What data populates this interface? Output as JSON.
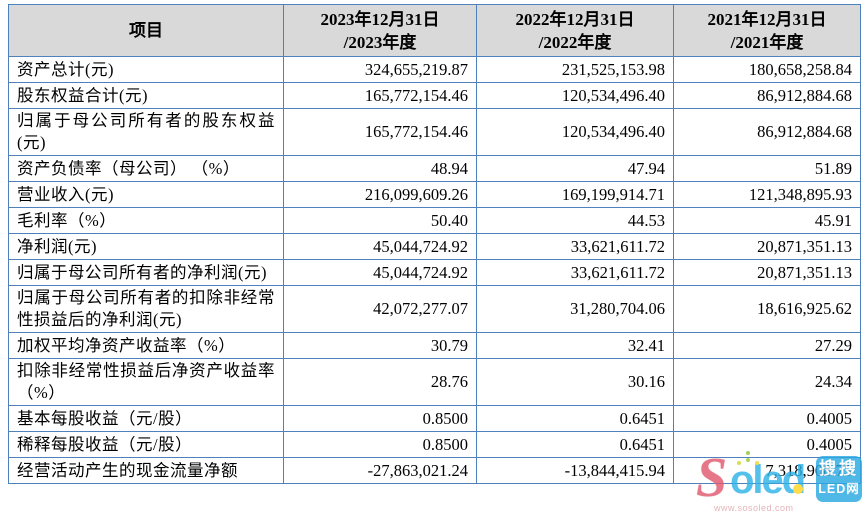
{
  "colors": {
    "table_border": "#4f81bd",
    "header_bg": "#d9d9d9",
    "text": "#000000",
    "watermark_red": "#e05a70",
    "watermark_blue": "#2fb3e8",
    "watermark_badge_bg": "#2aa9e1",
    "watermark_yellow": "#ffd520"
  },
  "table": {
    "columns": [
      {
        "label": "项目"
      },
      {
        "line1": "2023年12月31日",
        "line2": "/2023年度"
      },
      {
        "line1": "2022年12月31日",
        "line2": "/2022年度"
      },
      {
        "line1": "2021年12月31日",
        "line2": "/2021年度"
      }
    ],
    "rows": [
      {
        "label": "资产总计(元)",
        "values": [
          "324,655,219.87",
          "231,525,153.98",
          "180,658,258.84"
        ]
      },
      {
        "label": "股东权益合计(元)",
        "values": [
          "165,772,154.46",
          "120,534,496.40",
          "86,912,884.68"
        ]
      },
      {
        "label": "归属于母公司所有者的股东权益(元)",
        "values": [
          "165,772,154.46",
          "120,534,496.40",
          "86,912,884.68"
        ]
      },
      {
        "label": "资产负债率（母公司） （%）",
        "values": [
          "48.94",
          "47.94",
          "51.89"
        ]
      },
      {
        "label": "营业收入(元)",
        "values": [
          "216,099,609.26",
          "169,199,914.71",
          "121,348,895.93"
        ]
      },
      {
        "label": "毛利率（%）",
        "values": [
          "50.40",
          "44.53",
          "45.91"
        ]
      },
      {
        "label": "净利润(元)",
        "values": [
          "45,044,724.92",
          "33,621,611.72",
          "20,871,351.13"
        ]
      },
      {
        "label": "归属于母公司所有者的净利润(元)",
        "values": [
          "45,044,724.92",
          "33,621,611.72",
          "20,871,351.13"
        ]
      },
      {
        "label": "归属于母公司所有者的扣除非经常性损益后的净利润(元)",
        "values": [
          "42,072,277.07",
          "31,280,704.06",
          "18,616,925.62"
        ]
      },
      {
        "label": "加权平均净资产收益率（%）",
        "values": [
          "30.79",
          "32.41",
          "27.29"
        ]
      },
      {
        "label": "扣除非经常性损益后净资产收益率（%）",
        "values": [
          "28.76",
          "30.16",
          "24.34"
        ]
      },
      {
        "label": "基本每股收益（元/股）",
        "values": [
          "0.8500",
          "0.6451",
          "0.4005"
        ]
      },
      {
        "label": "稀释每股收益（元/股）",
        "values": [
          "0.8500",
          "0.6451",
          "0.4005"
        ]
      },
      {
        "label": "经营活动产生的现金流量净额",
        "values": [
          "-27,863,021.24",
          "-13,844,415.94",
          "7,318,908.75"
        ]
      }
    ]
  },
  "watermark": {
    "logo_s": "S",
    "logo_rest": "oled",
    "badge_line1": "搜搜",
    "badge_line2": "LED网",
    "url": "www.sosoled.com"
  }
}
